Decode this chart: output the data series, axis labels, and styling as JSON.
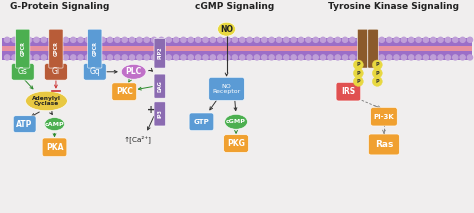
{
  "title_left": "G-Protein Signaling",
  "title_mid": "cGMP Signaling",
  "title_right": "Tyrosine Kinase Signaling",
  "bg_color": "#f0eeee",
  "membrane_color": "#9B6EC8",
  "membrane_stripe_color": "#bf9fd8",
  "gpcr1_color": "#4CAF50",
  "gpcr2_color": "#B85C38",
  "gpcr3_color": "#5B9BD5",
  "gs_color": "#4CAF50",
  "gi_color": "#B85C38",
  "gq_color": "#5B9BD5",
  "adenylyl_color": "#E8C842",
  "atp_color": "#5B9BD5",
  "camp_color": "#4CAF50",
  "pka_color": "#F0A030",
  "plc_color": "#C070C8",
  "pkc_color": "#F0A030",
  "pip2_color": "#8B6BB1",
  "dag_color": "#8B6BB1",
  "ip3_color": "#8B6BB1",
  "no_color": "#E8D840",
  "no_receptor_color": "#5B9BD5",
  "gtp_color": "#5B9BD5",
  "cgmp_color": "#4CAF50",
  "pkg_color": "#F0A030",
  "receptor_tk_color": "#8B5A2B",
  "p_color": "#E8D840",
  "irs_color": "#E05050",
  "pi3k_color": "#F0A030",
  "ras_color": "#F0A030",
  "arrow_green": "#2d8a2d",
  "arrow_black": "#333333",
  "arrow_red": "#cc3333",
  "text_dark": "#222222"
}
